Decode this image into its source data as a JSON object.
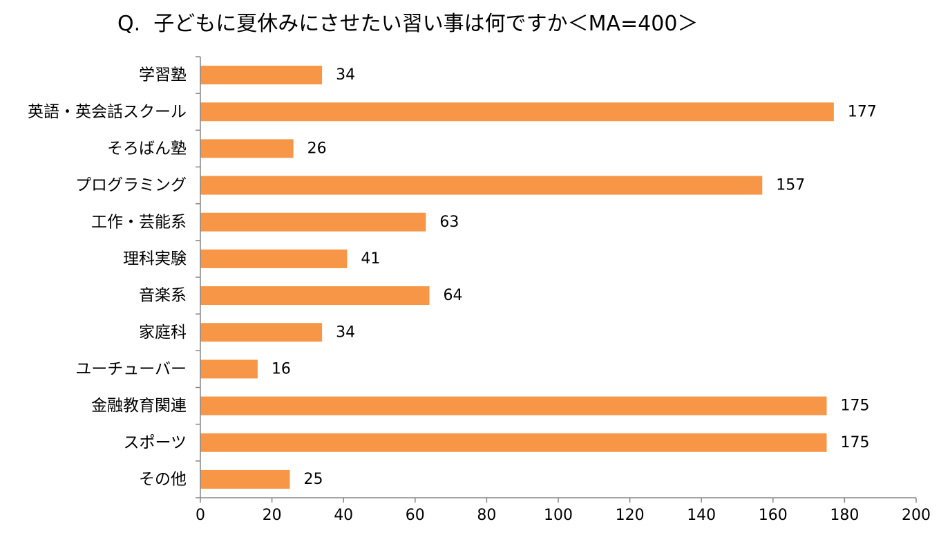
{
  "chart_data": {
    "type": "bar",
    "orientation": "horizontal",
    "title": "Q.  子どもに夏休みにさせたい習い事は何ですか＜MA=400＞",
    "xlabel": "",
    "ylabel": "",
    "categories": [
      "学習塾",
      "英語・英会話スクール",
      "そろばん塾",
      "プログラミング",
      "工作・芸能系",
      "理科実験",
      "音楽系",
      "家庭科",
      "ユーチューバー",
      "金融教育関連",
      "スポーツ",
      "その他"
    ],
    "values": [
      34,
      177,
      26,
      157,
      63,
      41,
      64,
      34,
      16,
      175,
      175,
      25
    ],
    "xlim": [
      0,
      200
    ],
    "x_ticks": [
      0,
      20,
      40,
      60,
      80,
      100,
      120,
      140,
      160,
      180,
      200
    ],
    "grid": false,
    "legend": "none",
    "bar_color": "#F79646"
  }
}
